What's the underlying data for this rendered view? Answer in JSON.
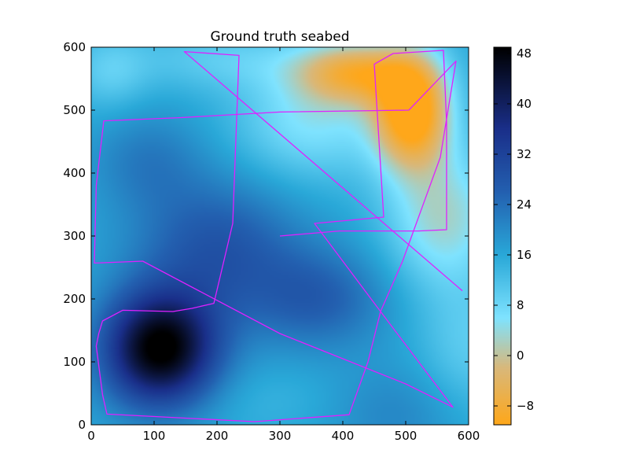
{
  "chart_data": {
    "type": "heatmap",
    "title": "Ground truth seabed",
    "xlabel": "",
    "ylabel": "",
    "xlim": [
      0,
      600
    ],
    "ylim": [
      0,
      600
    ],
    "xticks": [
      0,
      100,
      200,
      300,
      400,
      500,
      600
    ],
    "yticks": [
      0,
      100,
      200,
      300,
      400,
      500,
      600
    ],
    "colorbar": {
      "range": [
        -11,
        49
      ],
      "ticks": [
        -8,
        0,
        8,
        16,
        24,
        32,
        40,
        48
      ],
      "tick_labels": [
        "−8",
        "0",
        "8",
        "16",
        "24",
        "32",
        "40",
        "48"
      ],
      "colormap_stops": [
        {
          "value": -11,
          "color": "#ffa71a"
        },
        {
          "value": -2,
          "color": "#d9b87a"
        },
        {
          "value": 6,
          "color": "#7fe3ff"
        },
        {
          "value": 16,
          "color": "#29a8d8"
        },
        {
          "value": 26,
          "color": "#2360b0"
        },
        {
          "value": 36,
          "color": "#1a2f8a"
        },
        {
          "value": 49,
          "color": "#000000"
        }
      ]
    },
    "field": {
      "base": 16,
      "features": [
        {
          "x": 110,
          "y": 120,
          "sx": 90,
          "sy": 90,
          "v": 34
        },
        {
          "x": 200,
          "y": 280,
          "sx": 130,
          "sy": 110,
          "v": 12
        },
        {
          "x": 90,
          "y": 420,
          "sx": 90,
          "sy": 80,
          "v": 6
        },
        {
          "x": 360,
          "y": 200,
          "sx": 110,
          "sy": 80,
          "v": 10
        },
        {
          "x": 480,
          "y": 20,
          "sx": 120,
          "sy": 80,
          "v": 5
        },
        {
          "x": 510,
          "y": 500,
          "sx": 60,
          "sy": 90,
          "v": -30
        },
        {
          "x": 420,
          "y": 560,
          "sx": 90,
          "sy": 50,
          "v": -20
        },
        {
          "x": 560,
          "y": 330,
          "sx": 90,
          "sy": 110,
          "v": -13
        },
        {
          "x": 350,
          "y": 480,
          "sx": 120,
          "sy": 90,
          "v": -10
        },
        {
          "x": 220,
          "y": 580,
          "sx": 160,
          "sy": 50,
          "v": -6
        },
        {
          "x": 30,
          "y": 560,
          "sx": 60,
          "sy": 60,
          "v": -6
        },
        {
          "x": 600,
          "y": 120,
          "sx": 80,
          "sy": 110,
          "v": -6
        },
        {
          "x": 300,
          "y": 40,
          "sx": 150,
          "sy": 60,
          "v": -2
        }
      ]
    },
    "track": {
      "name": "",
      "color": "#e020ff",
      "points": [
        [
          590,
          213
        ],
        [
          148,
          593
        ],
        [
          235,
          587
        ],
        [
          225,
          320
        ],
        [
          195,
          193
        ],
        [
          160,
          185
        ],
        [
          130,
          180
        ],
        [
          50,
          182
        ],
        [
          18,
          165
        ],
        [
          12,
          145
        ],
        [
          8,
          125
        ],
        [
          18,
          48
        ],
        [
          25,
          17
        ],
        [
          260,
          5
        ],
        [
          410,
          16
        ],
        [
          440,
          100
        ],
        [
          460,
          180
        ],
        [
          495,
          260
        ],
        [
          555,
          425
        ],
        [
          580,
          578
        ],
        [
          505,
          500
        ],
        [
          300,
          497
        ],
        [
          140,
          488
        ],
        [
          20,
          483
        ],
        [
          8,
          380
        ],
        [
          5,
          257
        ],
        [
          82,
          260
        ],
        [
          300,
          145
        ],
        [
          500,
          65
        ],
        [
          575,
          28
        ],
        [
          460,
          180
        ],
        [
          355,
          320
        ],
        [
          465,
          330
        ],
        [
          450,
          573
        ],
        [
          480,
          590
        ],
        [
          560,
          595
        ],
        [
          565,
          480
        ],
        [
          565,
          310
        ],
        [
          520,
          308
        ],
        [
          395,
          308
        ],
        [
          300,
          300
        ]
      ]
    }
  }
}
